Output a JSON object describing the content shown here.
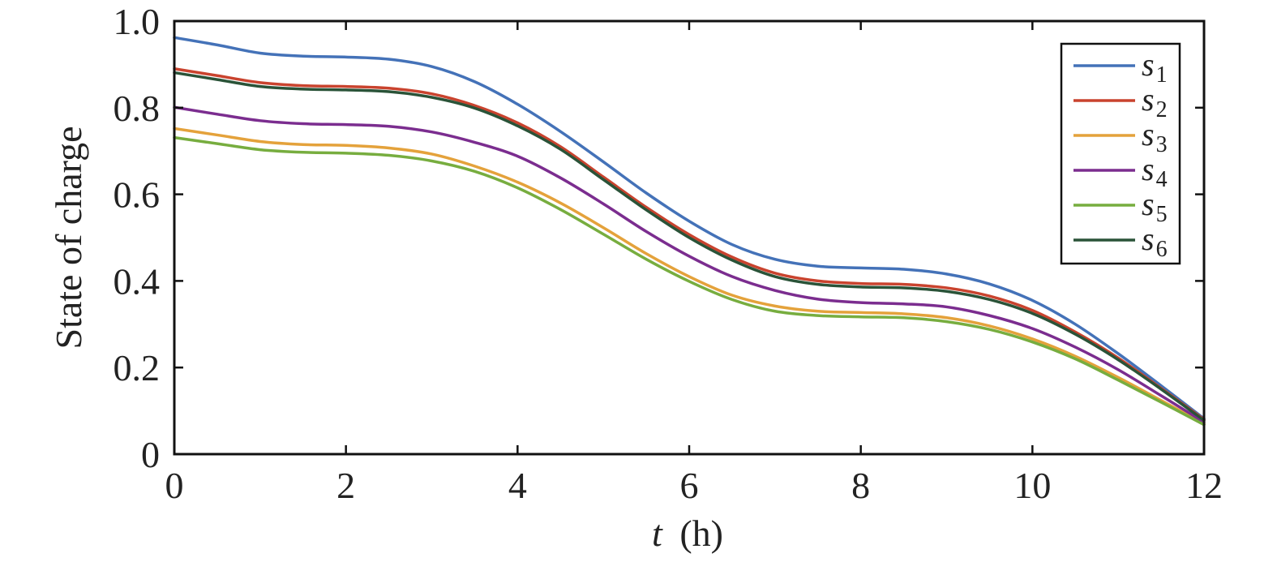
{
  "chart_data": {
    "type": "line",
    "title": "",
    "xlabel": {
      "var": "t",
      "unit": "(h)"
    },
    "ylabel": "State of charge",
    "xlim": [
      0,
      12
    ],
    "ylim": [
      0,
      1.0
    ],
    "xticks": [
      0,
      2,
      4,
      6,
      8,
      10,
      12
    ],
    "xtick_labels": [
      "0",
      "2",
      "4",
      "6",
      "8",
      "10",
      "12"
    ],
    "yticks": [
      0,
      0.2,
      0.4,
      0.6,
      0.8,
      1.0
    ],
    "ytick_labels": [
      "0",
      "0.2",
      "0.4",
      "0.6",
      "0.8",
      "1.0"
    ],
    "grid": false,
    "legend_position": "top-right",
    "x": [
      0,
      0.5,
      1,
      1.5,
      2,
      2.5,
      3,
      3.5,
      4,
      4.5,
      5,
      5.5,
      6,
      6.5,
      7,
      7.5,
      8,
      8.5,
      9,
      9.5,
      10,
      10.5,
      11,
      11.5,
      12
    ],
    "series": [
      {
        "name": "s",
        "sub": "1",
        "color": "#4472b8",
        "values": [
          0.962,
          0.945,
          0.926,
          0.919,
          0.917,
          0.912,
          0.895,
          0.86,
          0.808,
          0.745,
          0.675,
          0.603,
          0.538,
          0.484,
          0.45,
          0.434,
          0.43,
          0.427,
          0.416,
          0.393,
          0.355,
          0.3,
          0.232,
          0.158,
          0.082
        ]
      },
      {
        "name": "s",
        "sub": "2",
        "color": "#c9432e",
        "values": [
          0.89,
          0.874,
          0.858,
          0.851,
          0.849,
          0.845,
          0.832,
          0.805,
          0.765,
          0.71,
          0.64,
          0.57,
          0.507,
          0.455,
          0.418,
          0.4,
          0.394,
          0.392,
          0.384,
          0.365,
          0.332,
          0.282,
          0.222,
          0.152,
          0.08
        ]
      },
      {
        "name": "s",
        "sub": "3",
        "color": "#e4a23b",
        "values": [
          0.752,
          0.737,
          0.722,
          0.715,
          0.713,
          0.707,
          0.693,
          0.665,
          0.628,
          0.58,
          0.523,
          0.463,
          0.41,
          0.367,
          0.342,
          0.33,
          0.327,
          0.324,
          0.315,
          0.296,
          0.266,
          0.226,
          0.177,
          0.124,
          0.07
        ]
      },
      {
        "name": "s",
        "sub": "4",
        "color": "#7b2d8f",
        "values": [
          0.801,
          0.785,
          0.77,
          0.763,
          0.761,
          0.757,
          0.744,
          0.72,
          0.688,
          0.638,
          0.578,
          0.514,
          0.457,
          0.41,
          0.378,
          0.358,
          0.35,
          0.347,
          0.34,
          0.32,
          0.29,
          0.247,
          0.195,
          0.135,
          0.074
        ]
      },
      {
        "name": "s",
        "sub": "5",
        "color": "#77ad3f",
        "values": [
          0.731,
          0.717,
          0.703,
          0.697,
          0.695,
          0.69,
          0.677,
          0.653,
          0.615,
          0.565,
          0.508,
          0.45,
          0.399,
          0.357,
          0.33,
          0.32,
          0.317,
          0.315,
          0.306,
          0.288,
          0.259,
          0.22,
          0.171,
          0.12,
          0.068
        ]
      },
      {
        "name": "s",
        "sub": "6",
        "color": "#2a5338",
        "values": [
          0.881,
          0.865,
          0.849,
          0.843,
          0.841,
          0.837,
          0.824,
          0.799,
          0.758,
          0.704,
          0.634,
          0.564,
          0.5,
          0.448,
          0.41,
          0.392,
          0.386,
          0.384,
          0.376,
          0.357,
          0.325,
          0.277,
          0.218,
          0.15,
          0.078
        ]
      }
    ]
  }
}
